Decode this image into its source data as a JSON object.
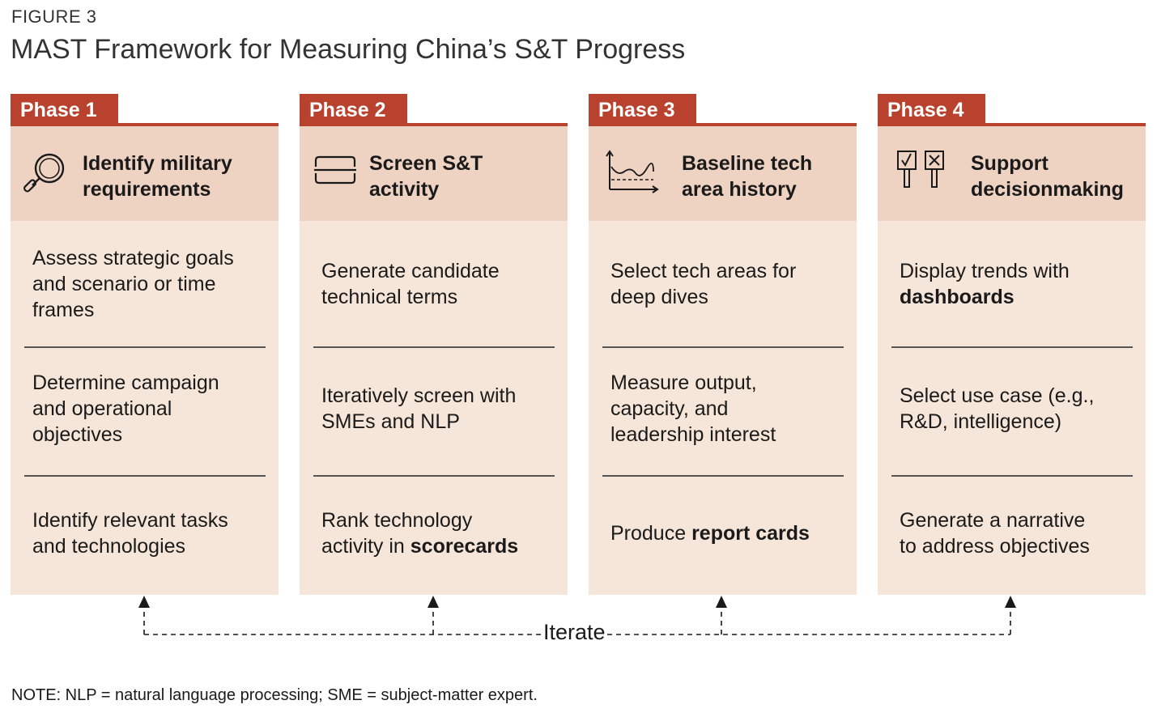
{
  "figure": {
    "label": "FIGURE 3",
    "title": "MAST Framework for Measuring China’s S&T Progress",
    "note": "NOTE: NLP = natural language processing; SME = subject-matter expert."
  },
  "colors": {
    "accent": "#b9422e",
    "header_bg": "#efd3c2",
    "body_bg": "#f6e6d9"
  },
  "phases": [
    {
      "tab": "Phase 1",
      "icon": "magnifier-icon",
      "heading": [
        "Identify military",
        "requirements"
      ],
      "items": [
        [
          {
            "t": "Assess strategic goals"
          }
        ],
        [
          {
            "t": "and scenario or time"
          }
        ],
        [
          {
            "t": "frames"
          }
        ],
        [
          {
            "t": "Determine campaign"
          }
        ],
        [
          {
            "t": "and operational"
          }
        ],
        [
          {
            "t": "objectives"
          }
        ],
        [
          {
            "t": "Identify relevant tasks"
          }
        ],
        [
          {
            "t": "and technologies"
          }
        ]
      ]
    },
    {
      "tab": "Phase 2",
      "icon": "filter-icon",
      "heading": [
        "Screen S&T",
        "activity"
      ],
      "items": [
        [
          {
            "t": "Generate candidate"
          }
        ],
        [
          {
            "t": "technical terms"
          }
        ],
        [
          {
            "t": "Iteratively screen with"
          }
        ],
        [
          {
            "t": "SMEs and NLP"
          }
        ],
        [
          {
            "t": "Rank technology"
          }
        ],
        [
          {
            "t": "activity in "
          },
          {
            "t": "scorecards",
            "b": true
          }
        ]
      ]
    },
    {
      "tab": "Phase 3",
      "icon": "trend-chart-icon",
      "heading": [
        "Baseline tech",
        "area history"
      ],
      "items": [
        [
          {
            "t": "Select tech areas for"
          }
        ],
        [
          {
            "t": "deep dives"
          }
        ],
        [
          {
            "t": "Measure output,"
          }
        ],
        [
          {
            "t": "capacity, and"
          }
        ],
        [
          {
            "t": "leadership interest"
          }
        ],
        [
          {
            "t": "Produce "
          },
          {
            "t": "report cards",
            "b": true
          }
        ]
      ]
    },
    {
      "tab": "Phase 4",
      "icon": "vote-signs-icon",
      "heading": [
        "Support",
        "decisionmaking"
      ],
      "items": [
        [
          {
            "t": "Display trends with"
          }
        ],
        [
          {
            "t": "dashboards",
            "b": true
          }
        ],
        [
          {
            "t": "Select use case (e.g.,"
          }
        ],
        [
          {
            "t": "R&D, intelligence)"
          }
        ],
        [
          {
            "t": "Generate a narrative"
          }
        ],
        [
          {
            "t": "to address objectives"
          }
        ]
      ]
    }
  ],
  "iterate_label": "Iterate"
}
